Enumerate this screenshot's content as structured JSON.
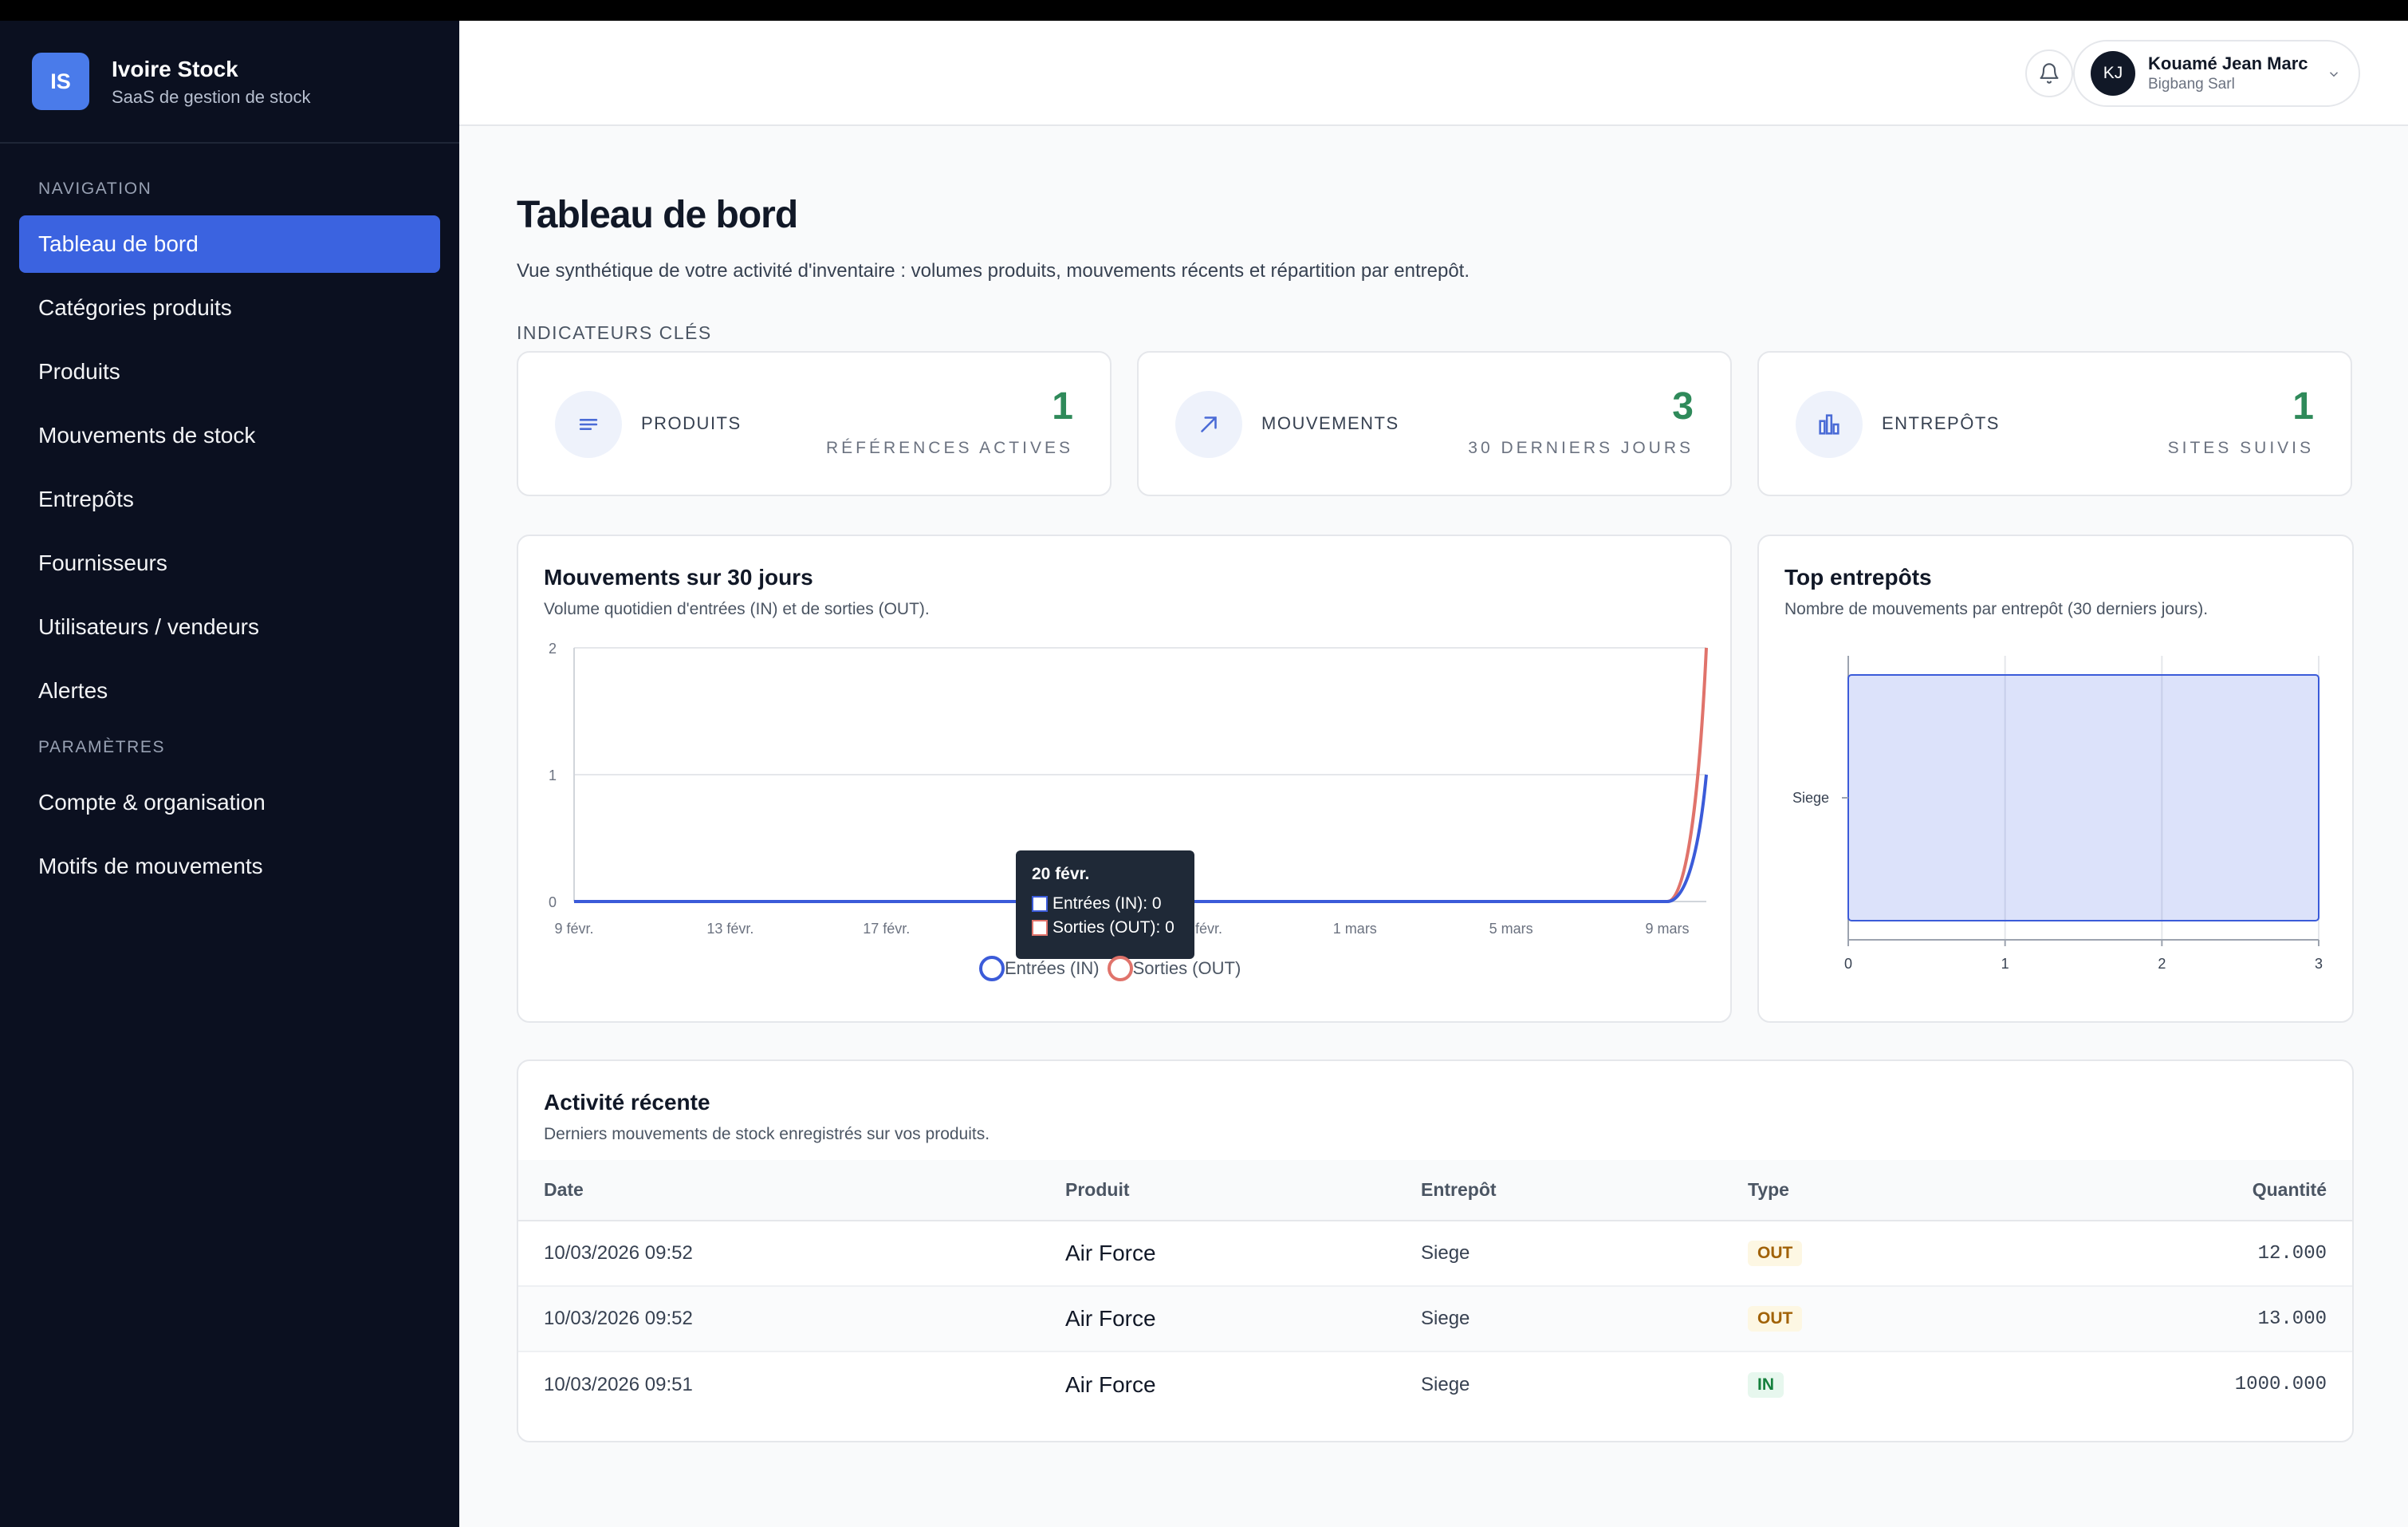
{
  "brand": {
    "initials": "IS",
    "name": "Ivoire Stock",
    "subtitle": "SaaS de gestion de stock"
  },
  "nav": {
    "section_navigation": "NAVIGATION",
    "items": [
      {
        "label": "Tableau de bord",
        "active": true
      },
      {
        "label": "Catégories produits"
      },
      {
        "label": "Produits"
      },
      {
        "label": "Mouvements de stock"
      },
      {
        "label": "Entrepôts"
      },
      {
        "label": "Fournisseurs"
      },
      {
        "label": "Utilisateurs / vendeurs"
      },
      {
        "label": "Alertes"
      }
    ],
    "section_params": "PARAMÈTRES",
    "params": [
      {
        "label": "Compte & organisation"
      },
      {
        "label": "Motifs de mouvements"
      }
    ]
  },
  "topbar": {
    "user_initials": "KJ",
    "user_name": "Kouamé Jean Marc",
    "user_org": "Bigbang Sarl"
  },
  "page": {
    "title": "Tableau de bord",
    "subtitle": "Vue synthétique de votre activité d'inventaire : volumes produits, mouvements récents et répartition par entrepôt.",
    "kpi_section": "INDICATEURS CLÉS"
  },
  "kpis": [
    {
      "label": "PRODUITS",
      "value": "1",
      "caption": "RÉFÉRENCES ACTIVES",
      "icon": "list-icon"
    },
    {
      "label": "MOUVEMENTS",
      "value": "3",
      "caption": "30 DERNIERS JOURS",
      "icon": "arrow-up-right-icon"
    },
    {
      "label": "ENTREPÔTS",
      "value": "1",
      "caption": "SITES SUIVIS",
      "icon": "bar-chart-icon"
    }
  ],
  "colors": {
    "accent": "#3b63e0",
    "in": "#3b5bd9",
    "out": "#e0736b",
    "positive": "#2f8a5a"
  },
  "movements_chart": {
    "title": "Mouvements sur 30 jours",
    "subtitle": "Volume quotidien d'entrées (IN) et de sorties (OUT).",
    "tooltip": {
      "date": "20 févr.",
      "in_label": "Entrées (IN): 0",
      "out_label": "Sorties (OUT): 0"
    },
    "legend": {
      "in": "Entrées (IN)",
      "out": "Sorties (OUT)"
    }
  },
  "warehouse_chart": {
    "title": "Top entrepôts",
    "subtitle": "Nombre de mouvements par entrepôt (30 derniers jours)."
  },
  "chart_data": [
    {
      "type": "line",
      "x_ticks": [
        "9 févr.",
        "13 févr.",
        "17 févr.",
        "21 févr.",
        "25 févr.",
        "1 mars",
        "5 mars",
        "9 mars"
      ],
      "x_start": "9 févr.",
      "x_end": "10 mars",
      "ylim": [
        0,
        2
      ],
      "y_ticks": [
        "0",
        "1",
        "2"
      ],
      "grid": true,
      "legend": "bottom-center",
      "series": [
        {
          "name": "Entrées (IN)",
          "values": [
            0,
            0,
            0,
            0,
            0,
            0,
            0,
            0,
            0,
            0,
            0,
            0,
            0,
            0,
            0,
            0,
            0,
            0,
            0,
            0,
            0,
            0,
            0,
            0,
            0,
            0,
            0,
            0,
            0,
            1
          ]
        },
        {
          "name": "Sorties (OUT)",
          "values": [
            0,
            0,
            0,
            0,
            0,
            0,
            0,
            0,
            0,
            0,
            0,
            0,
            0,
            0,
            0,
            0,
            0,
            0,
            0,
            0,
            0,
            0,
            0,
            0,
            0,
            0,
            0,
            0,
            0,
            2
          ]
        }
      ]
    },
    {
      "type": "bar",
      "orientation": "horizontal",
      "categories": [
        "Siege"
      ],
      "values": [
        3
      ],
      "xlim": [
        0,
        3
      ],
      "x_ticks": [
        "0",
        "1",
        "2",
        "3"
      ],
      "grid": true
    }
  ],
  "activity": {
    "title": "Activité récente",
    "subtitle": "Derniers mouvements de stock enregistrés sur vos produits.",
    "headers": {
      "date": "Date",
      "product": "Produit",
      "warehouse": "Entrepôt",
      "type": "Type",
      "qty": "Quantité"
    },
    "rows": [
      {
        "date": "10/03/2026 09:52",
        "product": "Air Force",
        "warehouse": "Siege",
        "type": "OUT",
        "qty": "12.000"
      },
      {
        "date": "10/03/2026 09:52",
        "product": "Air Force",
        "warehouse": "Siege",
        "type": "OUT",
        "qty": "13.000"
      },
      {
        "date": "10/03/2026 09:51",
        "product": "Air Force",
        "warehouse": "Siege",
        "type": "IN",
        "qty": "1000.000"
      }
    ]
  }
}
